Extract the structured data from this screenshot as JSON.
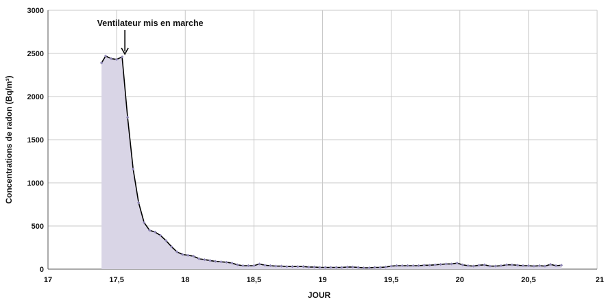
{
  "chart_data": {
    "type": "area",
    "title": "",
    "xlabel": "JOUR",
    "ylabel": "Concentrations de radon (Bq/m³)",
    "xlim": [
      17,
      21
    ],
    "ylim": [
      0,
      3000
    ],
    "x_ticks": [
      17,
      17.5,
      18,
      18.5,
      19,
      19.5,
      20,
      20.5,
      21
    ],
    "x_tick_labels": [
      "17",
      "17,5",
      "18",
      "18,5",
      "19",
      "19,5",
      "20",
      "20,5",
      "21"
    ],
    "y_ticks": [
      0,
      500,
      1000,
      1500,
      2000,
      2500,
      3000
    ],
    "y_tick_labels": [
      "0",
      "500",
      "1000",
      "1500",
      "2000",
      "2500",
      "3000"
    ],
    "grid": true,
    "legend": "none",
    "colors": {
      "fill": "#d9d5e6",
      "line": "#000000",
      "marker": "#8f87b5",
      "grid": "#c8c8c8"
    },
    "annotation": {
      "text": "Ventilateur mis en marche",
      "x": 17.56,
      "y": 2460
    },
    "series": [
      {
        "x": [
          17.39,
          17.42,
          17.46,
          17.5,
          17.54,
          17.58,
          17.62,
          17.66,
          17.7,
          17.74,
          17.78,
          17.82,
          17.86,
          17.9,
          17.94,
          17.98,
          18.02,
          18.06,
          18.1,
          18.14,
          18.18,
          18.22,
          18.26,
          18.3,
          18.34,
          18.38,
          18.42,
          18.46,
          18.5,
          18.54,
          18.58,
          18.62,
          18.66,
          18.7,
          18.74,
          18.78,
          18.82,
          18.86,
          18.9,
          18.94,
          18.98,
          19.02,
          19.06,
          19.1,
          19.14,
          19.18,
          19.22,
          19.26,
          19.3,
          19.34,
          19.38,
          19.42,
          19.46,
          19.5,
          19.54,
          19.58,
          19.62,
          19.66,
          19.7,
          19.74,
          19.78,
          19.82,
          19.86,
          19.9,
          19.94,
          19.98,
          20.02,
          20.06,
          20.1,
          20.14,
          20.18,
          20.22,
          20.26,
          20.3,
          20.34,
          20.38,
          20.42,
          20.46,
          20.5,
          20.54,
          20.58,
          20.62,
          20.66,
          20.7,
          20.74
        ],
        "values": [
          2390,
          2470,
          2440,
          2430,
          2460,
          1760,
          1160,
          770,
          540,
          450,
          430,
          390,
          330,
          260,
          200,
          170,
          160,
          150,
          120,
          110,
          100,
          90,
          85,
          80,
          70,
          50,
          40,
          40,
          40,
          60,
          45,
          40,
          35,
          35,
          30,
          30,
          30,
          30,
          25,
          25,
          20,
          20,
          20,
          20,
          20,
          25,
          25,
          20,
          15,
          15,
          20,
          20,
          25,
          35,
          40,
          40,
          40,
          40,
          40,
          45,
          45,
          50,
          55,
          60,
          60,
          70,
          50,
          40,
          35,
          45,
          50,
          35,
          35,
          40,
          50,
          50,
          45,
          40,
          40,
          35,
          40,
          35,
          55,
          40,
          45
        ]
      }
    ]
  }
}
